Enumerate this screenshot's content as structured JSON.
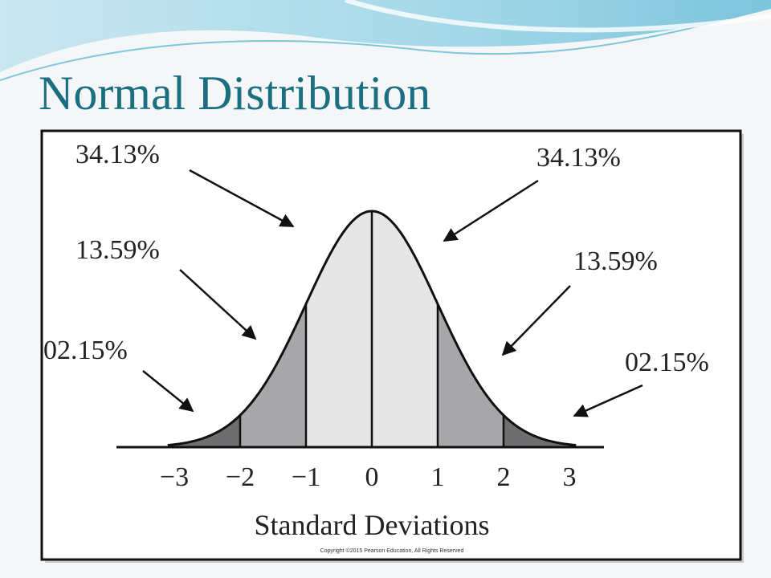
{
  "header": {
    "title": "Normal Distribution"
  },
  "diagram": {
    "labels": [
      "34.13%",
      "13.59%",
      "02.15%",
      "34.13%",
      "13.59%",
      "02.15%"
    ],
    "ticks": [
      "−3",
      "−2",
      "−1",
      "0",
      "1",
      "2",
      "3"
    ],
    "axis_label": "Standard Deviations",
    "copyright": "Copyright ©2015 Pearson Education, All Rights Reserved"
  }
}
